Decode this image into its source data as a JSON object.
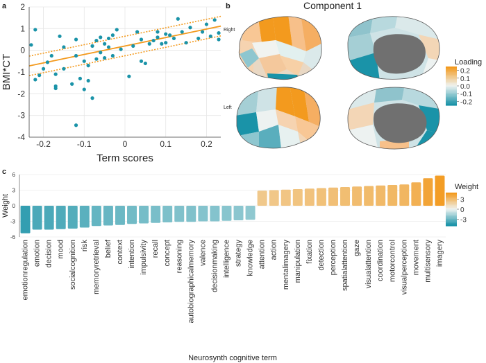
{
  "panel_letters": {
    "a": "a",
    "b": "b",
    "c": "c"
  },
  "brain_panel": {
    "title": "Component 1",
    "views": {
      "right": "Right",
      "left": "Left"
    },
    "legend_title": "Loading",
    "legend_ticks": [
      "0.2",
      "0.1",
      "0.0",
      "-0.1",
      "-0.2"
    ],
    "colors": {
      "neg": "#1a93a8",
      "pos": "#f39a1e",
      "mid": "#e7efef",
      "medial_wall": "#707070"
    }
  },
  "chart_data": [
    {
      "type": "scatter",
      "id": "scatter-a",
      "title": "",
      "xlabel": "Term scores",
      "ylabel": "BMI*CT",
      "xlim": [
        -0.235,
        0.235
      ],
      "ylim": [
        -4,
        2
      ],
      "xticks": [
        "-0.2",
        "-0.1",
        "0",
        "0.1",
        "0.2"
      ],
      "xtick_values": [
        -0.2,
        -0.1,
        0,
        0.1,
        0.2
      ],
      "yticks": [
        "2",
        "1",
        "0",
        "-1",
        "-2",
        "-3",
        "-4"
      ],
      "ytick_values": [
        2,
        1,
        0,
        -1,
        -2,
        -3,
        -4
      ],
      "point_color": "#1a93a8",
      "line_color": "#f39a1e",
      "regression": {
        "intercept": 0.2,
        "slope": 3.9
      },
      "ci_band": 0.45,
      "points": [
        [
          -0.23,
          0.25
        ],
        [
          -0.22,
          -1.35
        ],
        [
          -0.22,
          0.95
        ],
        [
          -0.21,
          -1.15
        ],
        [
          -0.2,
          -0.85
        ],
        [
          -0.19,
          -0.55
        ],
        [
          -0.18,
          -0.25
        ],
        [
          -0.17,
          -1.1
        ],
        [
          -0.17,
          -1.65
        ],
        [
          -0.17,
          -1.75
        ],
        [
          -0.16,
          0.65
        ],
        [
          -0.15,
          0.15
        ],
        [
          -0.15,
          -0.85
        ],
        [
          -0.13,
          -1.55
        ],
        [
          -0.12,
          0.5
        ],
        [
          -0.12,
          -0.25
        ],
        [
          -0.12,
          -3.45
        ],
        [
          -0.11,
          -1.3
        ],
        [
          -0.1,
          -1.8
        ],
        [
          -0.1,
          -0.5
        ],
        [
          -0.09,
          -1.4
        ],
        [
          -0.09,
          -0.7
        ],
        [
          -0.08,
          0.2
        ],
        [
          -0.08,
          -2.2
        ],
        [
          -0.07,
          -0.4
        ],
        [
          -0.07,
          0.45
        ],
        [
          -0.06,
          -0.1
        ],
        [
          -0.06,
          0.6
        ],
        [
          -0.05,
          0.3
        ],
        [
          -0.05,
          -0.35
        ],
        [
          -0.04,
          0.55
        ],
        [
          -0.04,
          0.15
        ],
        [
          -0.03,
          0.7
        ],
        [
          -0.03,
          -0.25
        ],
        [
          -0.02,
          0.95
        ],
        [
          -0.01,
          0.05
        ],
        [
          0.01,
          -1.2
        ],
        [
          0.02,
          0.2
        ],
        [
          0.03,
          0.85
        ],
        [
          0.04,
          0.5
        ],
        [
          0.04,
          -0.5
        ],
        [
          0.05,
          -0.6
        ],
        [
          0.06,
          0.3
        ],
        [
          0.07,
          0.45
        ],
        [
          0.08,
          0.85
        ],
        [
          0.08,
          0.6
        ],
        [
          0.09,
          0.3
        ],
        [
          0.1,
          0.75
        ],
        [
          0.1,
          0.35
        ],
        [
          0.11,
          0.7
        ],
        [
          0.12,
          0.55
        ],
        [
          0.13,
          1.45
        ],
        [
          0.14,
          0.85
        ],
        [
          0.15,
          0.35
        ],
        [
          0.16,
          1.05
        ],
        [
          0.18,
          0.55
        ],
        [
          0.19,
          0.85
        ],
        [
          0.2,
          1.2
        ],
        [
          0.21,
          0.65
        ],
        [
          0.22,
          1.4
        ],
        [
          0.23,
          0.8
        ],
        [
          0.23,
          0.5
        ]
      ]
    },
    {
      "type": "bar",
      "id": "bar-c",
      "xlabel": "Neurosynth cognitive term",
      "ylabel": "Weight",
      "ylim": [
        -6,
        6
      ],
      "yticks": [
        "6",
        "3",
        "0",
        "-3",
        "-6"
      ],
      "ytick_values": [
        6,
        3,
        0,
        -3,
        -6
      ],
      "legend_title": "Weight",
      "legend_ticks": [
        "3",
        "0",
        "-3"
      ],
      "categories": [
        "emotionregulation",
        "emotion",
        "decision",
        "mood",
        "socialcognition",
        "risk",
        "memoryretrieval",
        "belief",
        "context",
        "intention",
        "impulsivity",
        "recall",
        "concept",
        "reasoning",
        "autobiographicalmemory",
        "valence",
        "decisionmaking",
        "intelligence",
        "strategy",
        "knowledge",
        "attention",
        "action",
        "mentalimagery",
        "manipulation",
        "fixation",
        "detection",
        "perception",
        "spatialattention",
        "gaze",
        "visualattention",
        "coordination",
        "motorcontrol",
        "visualperception",
        "movement",
        "multisensory",
        "imagery"
      ],
      "values": [
        -5.3,
        -4.6,
        -4.6,
        -4.5,
        -4.4,
        -4.2,
        -3.9,
        -3.8,
        -3.7,
        -3.5,
        -3.4,
        -3.3,
        -3.2,
        -3.1,
        -3.1,
        -3.0,
        -3.0,
        -2.9,
        -2.8,
        -2.7,
        2.9,
        3.0,
        3.1,
        3.2,
        3.3,
        3.4,
        3.5,
        3.6,
        3.7,
        3.8,
        3.9,
        4.0,
        4.1,
        4.5,
        5.3,
        5.8
      ]
    }
  ]
}
